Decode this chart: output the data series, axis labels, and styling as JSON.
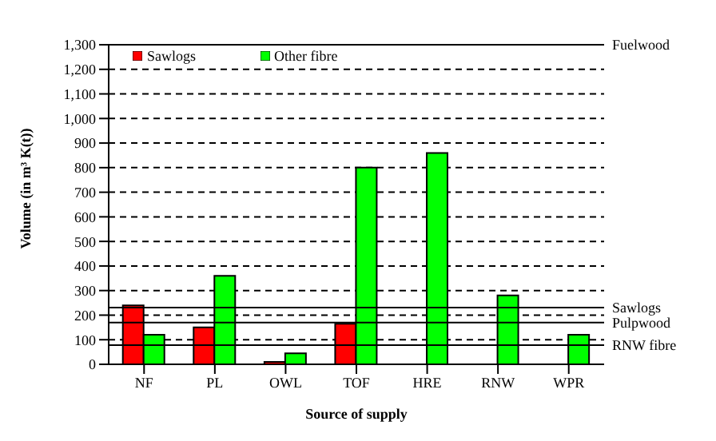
{
  "chart_data": {
    "type": "bar",
    "xlabel": "Source of supply",
    "ylabel": "Volume (in m³ K(t))",
    "categories": [
      "NF",
      "PL",
      "OWL",
      "TOF",
      "HRE",
      "RNW",
      "WPR"
    ],
    "series": [
      {
        "name": "Sawlogs",
        "color": "#ff0000",
        "values": [
          240,
          150,
          10,
          165,
          null,
          null,
          null
        ]
      },
      {
        "name": "Other fibre",
        "color": "#00ff00",
        "values": [
          120,
          360,
          45,
          800,
          860,
          280,
          120
        ]
      }
    ],
    "ylim": [
      0,
      1300
    ],
    "yticks": [
      0,
      {
        "value": 100,
        "label": "100"
      },
      {
        "value": 200,
        "label": "200"
      },
      {
        "value": 300,
        "label": "300"
      },
      {
        "value": 400,
        "label": "400"
      },
      {
        "value": 500,
        "label": "500"
      },
      {
        "value": 600,
        "label": "600"
      },
      {
        "value": 700,
        "label": "700"
      },
      {
        "value": 800,
        "label": "800"
      },
      {
        "value": 900,
        "label": "900"
      },
      {
        "value": 1000,
        "label": "1,000"
      },
      {
        "value": 1100,
        "label": "1,100"
      },
      {
        "value": 1200,
        "label": "1,200"
      },
      {
        "value": 1300,
        "label": "1,300"
      }
    ],
    "grid": "y",
    "legend": "top left",
    "ref_lines": [
      {
        "axis": "y",
        "value": 1300,
        "label": "Fuelwood"
      },
      {
        "axis": "y",
        "value": 231,
        "label": "Sawlogs"
      },
      {
        "axis": "y",
        "value": 170,
        "label": "Pulpwood"
      },
      {
        "axis": "y",
        "value": 78,
        "label": "RNW fibre"
      }
    ]
  }
}
